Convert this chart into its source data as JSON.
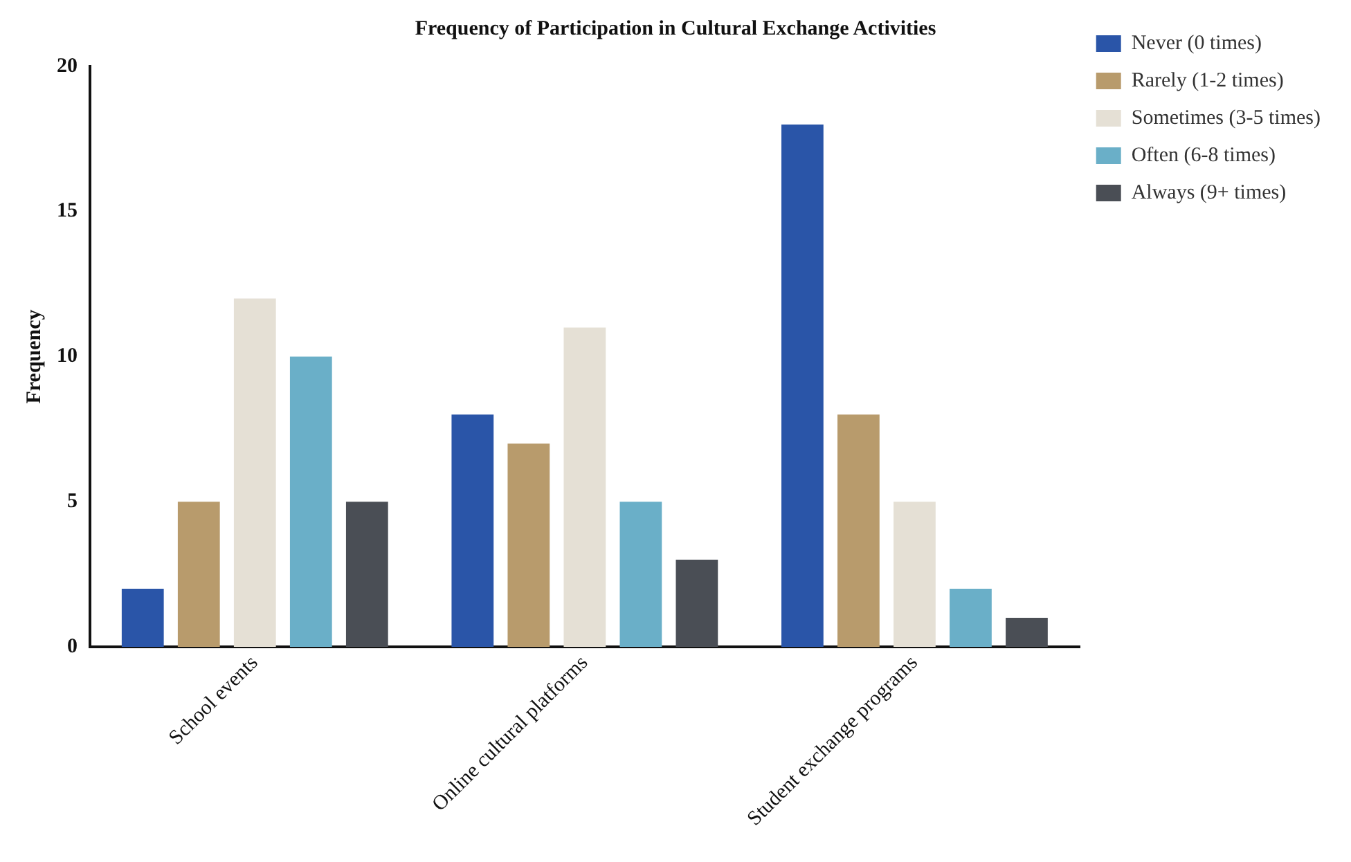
{
  "chart_data": {
    "type": "bar",
    "title": "Frequency of Participation in Cultural Exchange Activities",
    "ylabel": "Frequency",
    "categories": [
      "School events",
      "Online cultural platforms",
      "Student exchange programs"
    ],
    "series": [
      {
        "name": "Never (0 times)",
        "color": "#2a55a8",
        "values": [
          2,
          8,
          18
        ]
      },
      {
        "name": "Rarely (1-2 times)",
        "color": "#b89b6c",
        "values": [
          5,
          7,
          8
        ]
      },
      {
        "name": "Sometimes (3-5 times)",
        "color": "#e5e0d5",
        "values": [
          12,
          11,
          5
        ]
      },
      {
        "name": "Often (6-8 times)",
        "color": "#6aafc8",
        "values": [
          10,
          5,
          2
        ]
      },
      {
        "name": "Always (9+ times)",
        "color": "#4a4e55",
        "values": [
          5,
          3,
          1
        ]
      }
    ],
    "ylim": [
      0,
      20
    ],
    "yticks": [
      0,
      5,
      10,
      15,
      20
    ],
    "grid": false,
    "legend": "top right"
  }
}
